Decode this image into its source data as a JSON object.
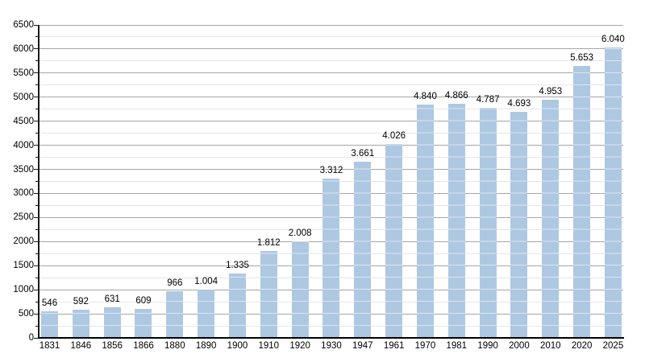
{
  "chart_data": {
    "type": "bar",
    "title": "",
    "xlabel": "",
    "ylabel": "",
    "categories": [
      "1831",
      "1846",
      "1856",
      "1866",
      "1880",
      "1890",
      "1900",
      "1910",
      "1920",
      "1930",
      "1947",
      "1961",
      "1970",
      "1981",
      "1990",
      "2000",
      "2010",
      "2020",
      "2025"
    ],
    "values": [
      546,
      592,
      631,
      609,
      966,
      1004,
      1335,
      1812,
      2008,
      3312,
      3661,
      4026,
      4840,
      4866,
      4787,
      4693,
      4953,
      5653,
      6040
    ],
    "value_labels": [
      "546",
      "592",
      "631",
      "609",
      "966",
      "1.004",
      "1.335",
      "1.812",
      "2.008",
      "3.312",
      "3.661",
      "4.026",
      "4.840",
      "4.866",
      "4.787",
      "4.693",
      "4.953",
      "5.653",
      "6.040"
    ],
    "ylim": [
      0,
      6500
    ],
    "y_major_step": 500,
    "y_minor_step": 250,
    "y_tick_labels": [
      "0",
      "500",
      "1000",
      "1500",
      "2000",
      "2500",
      "3000",
      "3500",
      "4000",
      "4500",
      "5000",
      "5500",
      "6000",
      "6500"
    ],
    "grid": true,
    "legend": "none",
    "colors": {
      "bar": "#aec8e2",
      "bar_gridline_overlay": "rgba(255,255,255,0.55)",
      "major_gridline": "#a6a6a6",
      "minor_gridline": "#e6e6e6",
      "axis": "#000000",
      "text": "#000000",
      "background": "#ffffff"
    }
  }
}
